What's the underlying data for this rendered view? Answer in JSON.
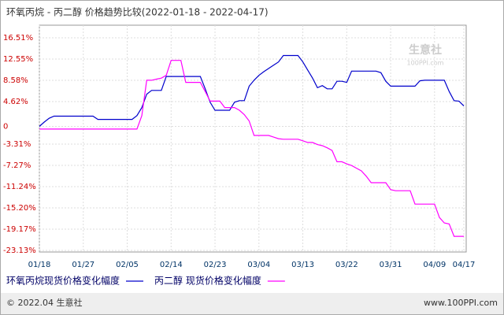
{
  "chart_data": {
    "type": "line",
    "title": "环氧丙烷 - 丙二醇  价格趋势比较(2022-01-18 - 2022-04-17)",
    "categories": [
      "01/18",
      null,
      null,
      null,
      null,
      null,
      null,
      null,
      null,
      "01/27",
      null,
      null,
      null,
      null,
      null,
      null,
      null,
      null,
      "02/05",
      null,
      null,
      null,
      null,
      null,
      null,
      null,
      null,
      "02/14",
      null,
      null,
      null,
      null,
      null,
      null,
      null,
      null,
      "02/23",
      null,
      null,
      null,
      null,
      null,
      null,
      null,
      null,
      "03/04",
      null,
      null,
      null,
      null,
      null,
      null,
      null,
      null,
      "03/13",
      null,
      null,
      null,
      null,
      null,
      null,
      null,
      null,
      "03/22",
      null,
      null,
      null,
      null,
      null,
      null,
      null,
      null,
      "03/31",
      null,
      null,
      null,
      null,
      null,
      null,
      null,
      null,
      "04/09",
      null,
      null,
      null,
      null,
      null,
      "04/17"
    ],
    "series": [
      {
        "name": "环氧丙烷现货价格变化幅度",
        "color": "#0000cc",
        "values": [
          0,
          0.8,
          1.5,
          1.9,
          1.9,
          1.9,
          1.9,
          1.9,
          1.9,
          1.9,
          1.9,
          1.9,
          1.3,
          1.3,
          1.3,
          1.3,
          1.3,
          1.3,
          1.3,
          1.3,
          2.0,
          3.5,
          6.0,
          6.7,
          6.7,
          6.7,
          9.3,
          9.3,
          9.3,
          9.3,
          9.3,
          9.3,
          9.3,
          9.3,
          7.0,
          4.5,
          3.0,
          3.0,
          3.0,
          3.0,
          4.5,
          4.8,
          4.8,
          7.5,
          8.6,
          9.5,
          10.2,
          10.8,
          11.4,
          12.0,
          13.2,
          13.2,
          13.2,
          13.2,
          12.0,
          10.5,
          9.0,
          7.2,
          7.6,
          7.0,
          7.0,
          8.4,
          8.4,
          8.2,
          10.3,
          10.3,
          10.3,
          10.3,
          10.3,
          10.3,
          10.0,
          8.4,
          7.5,
          7.5,
          7.5,
          7.5,
          7.5,
          7.5,
          8.5,
          8.6,
          8.6,
          8.6,
          8.6,
          8.6,
          6.5,
          4.8,
          4.7,
          3.8
        ]
      },
      {
        "name": "丙二醇 现货价格变化幅度",
        "color": "#ff00ff",
        "values": [
          -0.5,
          -0.5,
          -0.5,
          -0.5,
          -0.5,
          -0.5,
          -0.5,
          -0.5,
          -0.5,
          -0.5,
          -0.5,
          -0.5,
          -0.5,
          -0.5,
          -0.5,
          -0.5,
          -0.5,
          -0.5,
          -0.5,
          -0.5,
          -0.5,
          2.0,
          8.6,
          8.6,
          8.8,
          9.0,
          9.5,
          12.3,
          12.3,
          12.3,
          8.2,
          8.2,
          8.2,
          8.2,
          6.5,
          4.7,
          4.7,
          4.7,
          3.5,
          3.5,
          3.5,
          3.0,
          2.2,
          1.0,
          -1.7,
          -1.7,
          -1.7,
          -1.7,
          -2.0,
          -2.3,
          -2.4,
          -2.4,
          -2.4,
          -2.4,
          -2.7,
          -3.0,
          -3.0,
          -3.4,
          -3.6,
          -4.0,
          -4.5,
          -6.6,
          -6.6,
          -7.0,
          -7.3,
          -7.8,
          -8.3,
          -9.3,
          -10.5,
          -10.5,
          -10.5,
          -10.5,
          -11.8,
          -12.0,
          -12.0,
          -12.0,
          -12.0,
          -14.5,
          -14.5,
          -14.5,
          -14.5,
          -14.5,
          -17.0,
          -18.0,
          -18.2,
          -20.5,
          -20.5,
          -20.5
        ]
      }
    ],
    "ylim": [
      -23.13,
      16.51
    ],
    "yticks": [
      {
        "value": 16.51,
        "label": "16.51%"
      },
      {
        "value": 12.55,
        "label": "12.55%"
      },
      {
        "value": 8.58,
        "label": "8.58%"
      },
      {
        "value": 4.62,
        "label": "4.62%"
      },
      0,
      {
        "value": -3.31,
        "label": "-3.31%"
      },
      {
        "value": -7.27,
        "label": "-7.27%"
      },
      {
        "value": -11.24,
        "label": "-11.24%"
      },
      {
        "value": -15.2,
        "label": "-15.20%"
      },
      {
        "value": -19.17,
        "label": "-19.17%"
      },
      {
        "value": -23.13,
        "label": "-23.13%"
      }
    ],
    "grid": true,
    "watermark": [
      "生意社",
      "100PPI.com"
    ],
    "footer": {
      "left": "© 2022.04 生意社",
      "right": "www.100PPI.com"
    }
  }
}
